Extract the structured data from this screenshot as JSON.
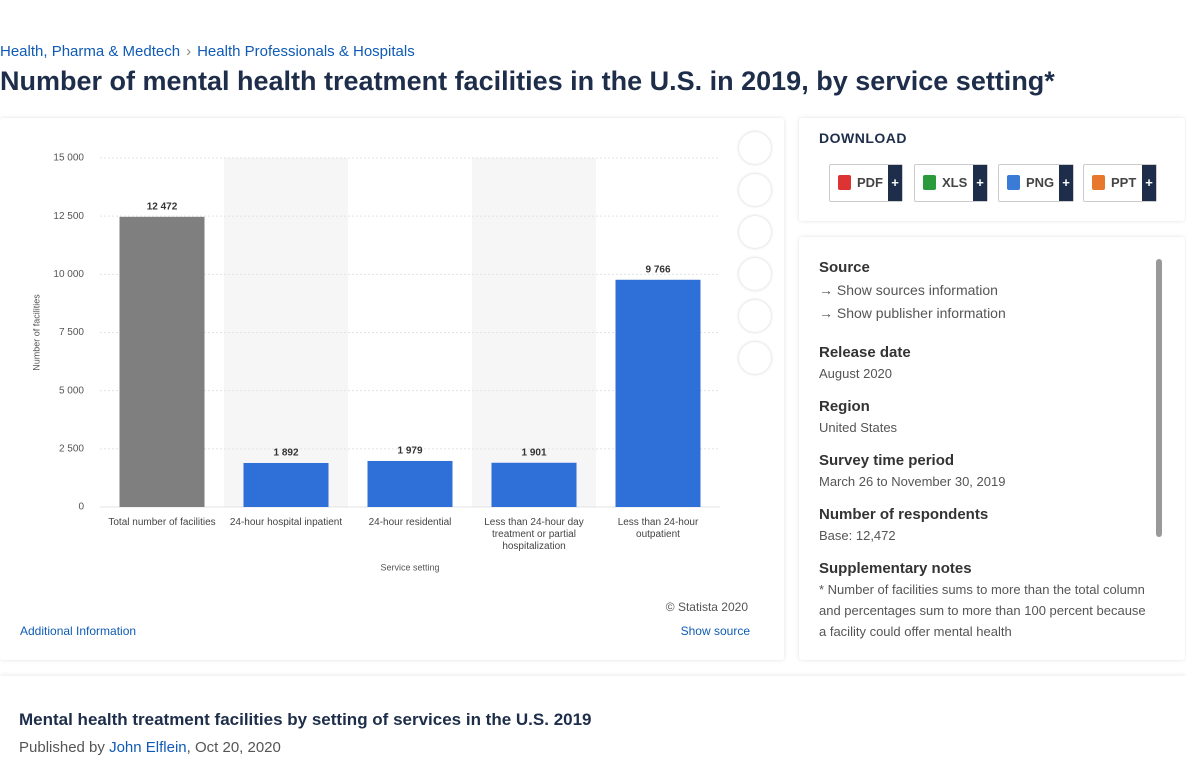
{
  "breadcrumb": [
    "Health, Pharma & Medtech",
    "Health Professionals & Hospitals"
  ],
  "page_title": "Number of mental health treatment facilities in the U.S. in 2019, by service setting*",
  "chart_data": {
    "type": "bar",
    "categories": [
      "Total number of facilities",
      "24-hour hospital inpatient",
      "24-hour residential",
      "Less than 24-hour day treatment or partial hospitalization",
      "Less than 24-hour outpatient"
    ],
    "values": [
      12472,
      1892,
      1979,
      1901,
      9766
    ],
    "value_labels": [
      "12 472",
      "1 892",
      "1 979",
      "1 901",
      "9 766"
    ],
    "colors": [
      "#7f7f7f",
      "#2f6fd8",
      "#2f6fd8",
      "#2f6fd8",
      "#2f6fd8"
    ],
    "ylim": [
      0,
      15000
    ],
    "yticks": [
      0,
      {
        "value": 2500,
        "label": "2 500"
      },
      {
        "value": 5000,
        "label": "5 000"
      },
      {
        "value": 7500,
        "label": "7 500"
      },
      {
        "value": 10000,
        "label": "10 000"
      },
      {
        "value": 12500,
        "label": "12 500"
      },
      {
        "value": 15000,
        "label": "15 000"
      }
    ],
    "y_label": "Number of facilities",
    "x_label": "Service setting",
    "grid": true
  },
  "chart_footer": {
    "copyright": "© Statista 2020",
    "additional": "Additional Information",
    "show_source": "Show source"
  },
  "download": {
    "title": "DOWNLOAD",
    "formats": [
      "PDF",
      "XLS",
      "PNG",
      "PPT"
    ],
    "plus": "+"
  },
  "info": {
    "source_heading": "Source",
    "links": [
      "Show sources information",
      "Show publisher information"
    ],
    "sections": [
      {
        "heading": "Release date",
        "text": "August 2020"
      },
      {
        "heading": "Region",
        "text": "United States"
      },
      {
        "heading": "Survey time period",
        "text": "March 26 to November 30, 2019"
      },
      {
        "heading": "Number of respondents",
        "text": "Base: 12,472"
      },
      {
        "heading": "Supplementary notes",
        "text": "* Number of facilities sums to more than the total column and percentages sum to more than 100 percent because a facility could offer mental health"
      }
    ]
  },
  "footer": {
    "title": "Mental health treatment facilities by setting of services in the U.S. 2019",
    "published_by": "Published by",
    "author": "John Elflein",
    "date": ", Oct 20, 2020"
  }
}
